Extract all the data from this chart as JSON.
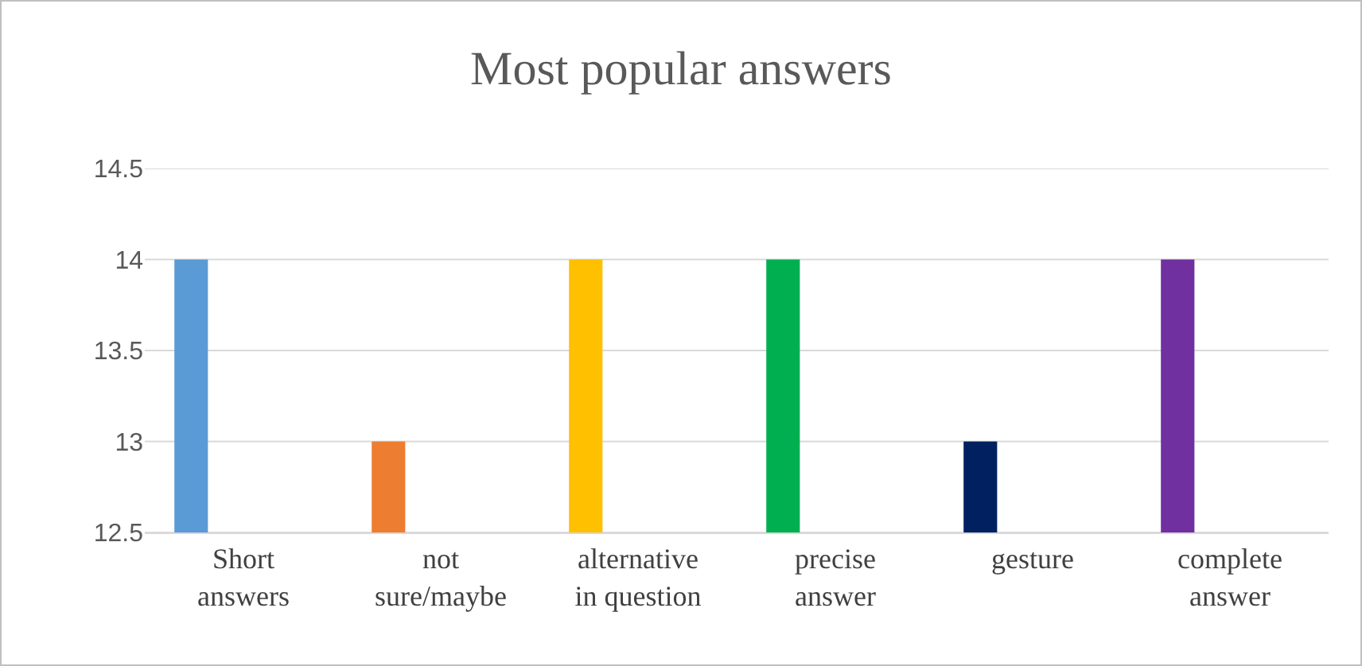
{
  "chart_data": {
    "type": "bar",
    "title": "Most popular answers",
    "categories": [
      "Short answers",
      "not sure/maybe",
      "alternative in question",
      "precise answer",
      "gesture",
      "complete answer"
    ],
    "values": [
      14,
      13,
      14,
      14,
      13,
      14
    ],
    "colors": [
      "#5b9bd5",
      "#ed7d31",
      "#ffc000",
      "#00b050",
      "#002060",
      "#7030a0"
    ],
    "ylim": [
      12.5,
      14.5
    ],
    "yticks": [
      12.5,
      13,
      13.5,
      14,
      14.5
    ],
    "grid": "y"
  }
}
